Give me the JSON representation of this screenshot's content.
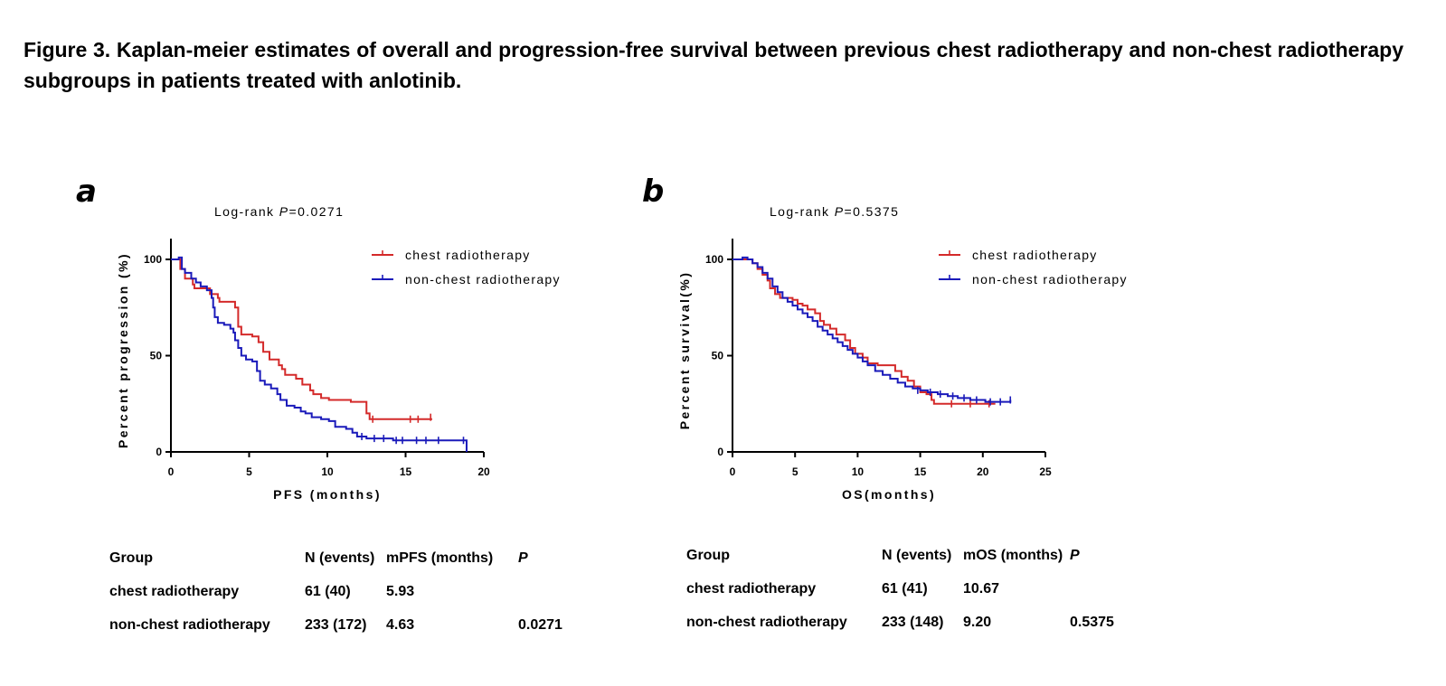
{
  "caption": "Figure 3. Kaplan-meier estimates of overall and progression-free survival between previous chest radiotherapy and non-chest radiotherapy subgroups in patients treated with anlotinib.",
  "colors": {
    "chest": "#d42a2a",
    "nonchest": "#1a1aba"
  },
  "chart_data": [
    {
      "type": "line",
      "panel": "a",
      "title_prefix": "Log-rank ",
      "title_p": "P",
      "title_value": "=0.0271",
      "xlabel": "PFS (months)",
      "ylabel": "Percent progression (%)",
      "xlim": [
        0,
        20
      ],
      "ylim": [
        0,
        100
      ],
      "xticks": [
        0,
        5,
        10,
        15,
        20
      ],
      "yticks": [
        0,
        50,
        100
      ],
      "legend_position": "top-right",
      "series": [
        {
          "name": "chest radiotherapy",
          "color_key": "chest",
          "steps": [
            [
              0,
              100
            ],
            [
              0.6,
              95
            ],
            [
              0.9,
              90
            ],
            [
              1.4,
              87
            ],
            [
              1.5,
              85
            ],
            [
              2.5,
              82
            ],
            [
              3.0,
              80
            ],
            [
              3.1,
              78
            ],
            [
              4.1,
              75
            ],
            [
              4.3,
              65
            ],
            [
              4.5,
              61
            ],
            [
              5.2,
              60
            ],
            [
              5.6,
              57
            ],
            [
              5.9,
              52
            ],
            [
              6.3,
              48
            ],
            [
              6.9,
              45
            ],
            [
              7.1,
              43
            ],
            [
              7.3,
              40
            ],
            [
              8.0,
              38
            ],
            [
              8.4,
              35
            ],
            [
              8.9,
              32
            ],
            [
              9.1,
              30
            ],
            [
              9.6,
              28
            ],
            [
              10.1,
              27
            ],
            [
              11.5,
              26
            ],
            [
              12.5,
              20
            ],
            [
              12.7,
              17
            ],
            [
              16.7,
              17
            ]
          ],
          "censors": [
            [
              12.9,
              17
            ],
            [
              15.3,
              17
            ],
            [
              15.8,
              17
            ],
            [
              16.6,
              18
            ]
          ]
        },
        {
          "name": "non-chest radiotherapy",
          "color_key": "nonchest",
          "steps": [
            [
              0,
              100
            ],
            [
              0.5,
              101
            ],
            [
              0.7,
              95
            ],
            [
              0.9,
              93
            ],
            [
              1.3,
              90
            ],
            [
              1.6,
              88
            ],
            [
              1.9,
              86
            ],
            [
              2.3,
              84
            ],
            [
              2.6,
              80
            ],
            [
              2.7,
              75
            ],
            [
              2.8,
              70
            ],
            [
              3.0,
              67
            ],
            [
              3.4,
              66
            ],
            [
              3.8,
              64
            ],
            [
              4.0,
              62
            ],
            [
              4.1,
              58
            ],
            [
              4.3,
              54
            ],
            [
              4.5,
              50
            ],
            [
              4.8,
              48
            ],
            [
              5.2,
              47
            ],
            [
              5.5,
              42
            ],
            [
              5.7,
              37
            ],
            [
              6.0,
              35
            ],
            [
              6.4,
              33
            ],
            [
              6.8,
              30
            ],
            [
              7.0,
              27
            ],
            [
              7.4,
              24
            ],
            [
              7.9,
              23
            ],
            [
              8.3,
              21
            ],
            [
              8.6,
              20
            ],
            [
              9.0,
              18
            ],
            [
              9.6,
              17
            ],
            [
              10.1,
              16
            ],
            [
              10.5,
              13
            ],
            [
              11.2,
              12
            ],
            [
              11.6,
              10
            ],
            [
              11.9,
              8
            ],
            [
              12.5,
              7
            ],
            [
              14.2,
              6
            ],
            [
              18.0,
              6
            ],
            [
              18.9,
              6
            ],
            [
              18.9,
              0
            ]
          ],
          "censors": [
            [
              12.2,
              8
            ],
            [
              13.0,
              7
            ],
            [
              13.6,
              7
            ],
            [
              14.4,
              6
            ],
            [
              14.8,
              6
            ],
            [
              15.7,
              6
            ],
            [
              16.3,
              6
            ],
            [
              17.1,
              6
            ],
            [
              18.7,
              6
            ]
          ]
        }
      ]
    },
    {
      "type": "line",
      "panel": "b",
      "title_prefix": "Log-rank ",
      "title_p": "P",
      "title_value": "=0.5375",
      "xlabel": "OS(months)",
      "ylabel": "Percent survival(%)",
      "xlim": [
        0,
        25
      ],
      "ylim": [
        0,
        100
      ],
      "xticks": [
        0,
        5,
        10,
        15,
        20,
        25
      ],
      "yticks": [
        0,
        50,
        100
      ],
      "legend_position": "top-right",
      "series": [
        {
          "name": "chest radiotherapy",
          "color_key": "chest",
          "steps": [
            [
              0,
              100
            ],
            [
              1.0,
              100
            ],
            [
              1.6,
              98
            ],
            [
              2.0,
              95
            ],
            [
              2.4,
              92
            ],
            [
              2.8,
              89
            ],
            [
              3.0,
              85
            ],
            [
              3.4,
              82
            ],
            [
              3.8,
              80
            ],
            [
              4.8,
              79
            ],
            [
              5.2,
              77
            ],
            [
              5.6,
              76
            ],
            [
              6.0,
              74
            ],
            [
              6.6,
              72
            ],
            [
              7.0,
              68
            ],
            [
              7.3,
              66
            ],
            [
              7.8,
              64
            ],
            [
              8.3,
              61
            ],
            [
              9.0,
              58
            ],
            [
              9.4,
              54
            ],
            [
              9.8,
              51
            ],
            [
              10.4,
              49
            ],
            [
              10.8,
              46
            ],
            [
              11.6,
              45
            ],
            [
              13.0,
              42
            ],
            [
              13.5,
              39
            ],
            [
              14.0,
              37
            ],
            [
              14.5,
              34
            ],
            [
              15.0,
              31
            ],
            [
              15.5,
              30
            ],
            [
              15.9,
              27
            ],
            [
              16.1,
              25
            ],
            [
              21.0,
              25
            ]
          ],
          "censors": [
            [
              17.5,
              25
            ],
            [
              19.0,
              25
            ],
            [
              20.5,
              25
            ]
          ]
        },
        {
          "name": "non-chest radiotherapy",
          "color_key": "nonchest",
          "steps": [
            [
              0,
              100
            ],
            [
              0.8,
              101
            ],
            [
              1.2,
              100
            ],
            [
              1.6,
              98
            ],
            [
              2.0,
              96
            ],
            [
              2.4,
              93
            ],
            [
              2.8,
              90
            ],
            [
              3.2,
              86
            ],
            [
              3.6,
              83
            ],
            [
              4.0,
              80
            ],
            [
              4.4,
              78
            ],
            [
              4.8,
              76
            ],
            [
              5.2,
              74
            ],
            [
              5.6,
              72
            ],
            [
              6.0,
              70
            ],
            [
              6.4,
              68
            ],
            [
              6.8,
              65
            ],
            [
              7.2,
              63
            ],
            [
              7.6,
              61
            ],
            [
              8.0,
              59
            ],
            [
              8.4,
              57
            ],
            [
              8.8,
              55
            ],
            [
              9.2,
              53
            ],
            [
              9.6,
              51
            ],
            [
              10.0,
              49
            ],
            [
              10.4,
              47
            ],
            [
              10.8,
              45
            ],
            [
              11.4,
              42
            ],
            [
              12.0,
              40
            ],
            [
              12.6,
              38
            ],
            [
              13.2,
              36
            ],
            [
              13.8,
              34
            ],
            [
              14.4,
              33
            ],
            [
              15.0,
              32
            ],
            [
              15.6,
              31
            ],
            [
              16.4,
              30
            ],
            [
              17.2,
              29
            ],
            [
              18.0,
              28
            ],
            [
              19.0,
              27
            ],
            [
              20.2,
              26
            ],
            [
              22.2,
              26
            ],
            [
              22.2,
              27
            ]
          ],
          "censors": [
            [
              14.8,
              32
            ],
            [
              15.8,
              31
            ],
            [
              16.6,
              30
            ],
            [
              17.6,
              29
            ],
            [
              18.5,
              28
            ],
            [
              19.5,
              27
            ],
            [
              20.6,
              26
            ],
            [
              21.4,
              26
            ],
            [
              22.2,
              27
            ]
          ]
        }
      ]
    }
  ],
  "tables": [
    {
      "headers": {
        "group": "Group",
        "n": "N (events)",
        "median": "mPFS (months)",
        "p": "P"
      },
      "rows": [
        {
          "group": "chest radiotherapy",
          "n": "61 (40)",
          "median": "5.93",
          "p": ""
        },
        {
          "group": "non-chest radiotherapy",
          "n": "233 (172)",
          "median": "4.63",
          "p": "0.0271"
        }
      ]
    },
    {
      "headers": {
        "group": "Group",
        "n": "N (events)",
        "median": "mOS (months)",
        "p": "P"
      },
      "rows": [
        {
          "group": "chest radiotherapy",
          "n": "61 (41)",
          "median": "10.67",
          "p": ""
        },
        {
          "group": "non-chest radiotherapy",
          "n": "233 (148)",
          "median": "9.20",
          "p": "0.5375"
        }
      ]
    }
  ]
}
